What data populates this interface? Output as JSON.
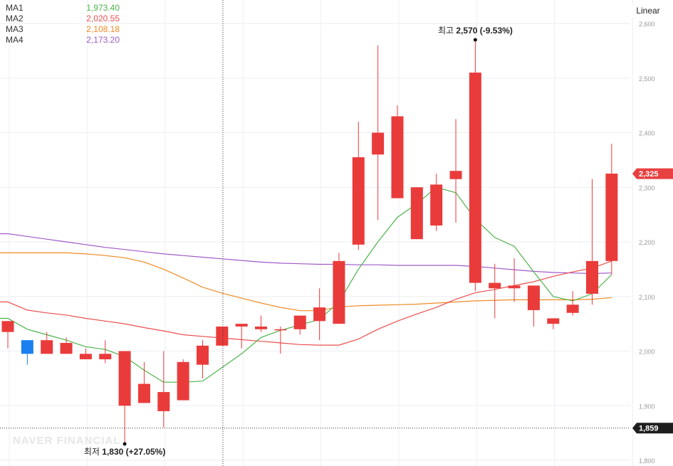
{
  "legend": [
    {
      "name": "MA1",
      "value": "1,973.40",
      "color": "#4cb34a"
    },
    {
      "name": "MA2",
      "value": "2,020.55",
      "color": "#ea4f4f"
    },
    {
      "name": "MA3",
      "value": "2,108.18",
      "color": "#f08a24"
    },
    {
      "name": "MA4",
      "value": "2,173.20",
      "color": "#a05ac9"
    }
  ],
  "scale_button": "Linear",
  "watermark": "NAVER FINANCIAL",
  "price_tags": {
    "current": "2,325",
    "crosshair": "1,859"
  },
  "annotations": {
    "high_prefix": "최고",
    "high_value": "2,570",
    "high_change": "(-9.53%)",
    "low_prefix": "최저",
    "low_value": "1,830",
    "low_change": "(+27.05%)"
  },
  "colors": {
    "up": "#ea3b3b",
    "down": "#1a7ff0",
    "current_tag": "#e84141",
    "crosshair_tag": "#1e1e1e",
    "grid": "#eceef1",
    "axis_text": "#9a9a9a"
  },
  "chart_data": {
    "type": "candlestick",
    "y_axis": {
      "ticks": [
        "2,600",
        "2,500",
        "2,400",
        "2,300",
        "2,200",
        "2,100",
        "2,000",
        "1,900",
        "1,800"
      ],
      "range": [
        1800,
        2600
      ]
    },
    "candles": [
      {
        "o": 2035,
        "h": 2055,
        "l": 2005,
        "c": 2055
      },
      {
        "o": 2020,
        "h": 2020,
        "l": 1975,
        "c": 1995
      },
      {
        "o": 1995,
        "h": 2035,
        "l": 1995,
        "c": 2020
      },
      {
        "o": 1995,
        "h": 2025,
        "l": 1995,
        "c": 2015
      },
      {
        "o": 1985,
        "h": 2005,
        "l": 1985,
        "c": 1995
      },
      {
        "o": 1985,
        "h": 2020,
        "l": 1978,
        "c": 1995
      },
      {
        "o": 1900,
        "h": 2000,
        "l": 1830,
        "c": 2000
      },
      {
        "o": 1905,
        "h": 1980,
        "l": 1905,
        "c": 1940
      },
      {
        "o": 1890,
        "h": 2000,
        "l": 1860,
        "c": 1925
      },
      {
        "o": 1910,
        "h": 1985,
        "l": 1910,
        "c": 1980
      },
      {
        "o": 1975,
        "h": 2020,
        "l": 1950,
        "c": 2010
      },
      {
        "o": 2010,
        "h": 2045,
        "l": 2010,
        "c": 2045
      },
      {
        "o": 2045,
        "h": 2050,
        "l": 2005,
        "c": 2050
      },
      {
        "o": 2040,
        "h": 2065,
        "l": 2035,
        "c": 2045
      },
      {
        "o": 2040,
        "h": 2045,
        "l": 1995,
        "c": 2040
      },
      {
        "o": 2040,
        "h": 2065,
        "l": 2030,
        "c": 2065
      },
      {
        "o": 2055,
        "h": 2115,
        "l": 2020,
        "c": 2080
      },
      {
        "o": 2050,
        "h": 2180,
        "l": 2050,
        "c": 2165
      },
      {
        "o": 2195,
        "h": 2420,
        "l": 2185,
        "c": 2355
      },
      {
        "o": 2360,
        "h": 2560,
        "l": 2240,
        "c": 2400
      },
      {
        "o": 2280,
        "h": 2450,
        "l": 2280,
        "c": 2430
      },
      {
        "o": 2205,
        "h": 2300,
        "l": 2205,
        "c": 2300
      },
      {
        "o": 2230,
        "h": 2325,
        "l": 2220,
        "c": 2305
      },
      {
        "o": 2315,
        "h": 2425,
        "l": 2235,
        "c": 2330
      },
      {
        "o": 2125,
        "h": 2570,
        "l": 2110,
        "c": 2510
      },
      {
        "o": 2115,
        "h": 2160,
        "l": 2060,
        "c": 2125
      },
      {
        "o": 2115,
        "h": 2170,
        "l": 2090,
        "c": 2120
      },
      {
        "o": 2075,
        "h": 2120,
        "l": 2045,
        "c": 2120
      },
      {
        "o": 2050,
        "h": 2060,
        "l": 2040,
        "c": 2060
      },
      {
        "o": 2070,
        "h": 2110,
        "l": 2065,
        "c": 2085
      },
      {
        "o": 2105,
        "h": 2315,
        "l": 2085,
        "c": 2165
      },
      {
        "o": 2165,
        "h": 2380,
        "l": 2140,
        "c": 2325
      }
    ],
    "moving_averages": {
      "MA1": [
        2060,
        2040,
        2030,
        2020,
        2008,
        2003,
        1990,
        1965,
        1943,
        1943,
        1945,
        1970,
        1995,
        2025,
        2038,
        2048,
        2058,
        2090,
        2150,
        2200,
        2245,
        2270,
        2300,
        2290,
        2242,
        2208,
        2192,
        2145,
        2100,
        2092,
        2105,
        2140
      ],
      "MA2": [
        2090,
        2075,
        2070,
        2066,
        2060,
        2055,
        2050,
        2043,
        2037,
        2030,
        2027,
        2024,
        2021,
        2018,
        2015,
        2012,
        2011,
        2011,
        2022,
        2040,
        2055,
        2068,
        2080,
        2095,
        2107,
        2113,
        2120,
        2127,
        2137,
        2145,
        2152,
        2165
      ],
      "MA3": [
        2180,
        2180,
        2180,
        2180,
        2178,
        2175,
        2171,
        2163,
        2150,
        2134,
        2117,
        2106,
        2097,
        2088,
        2080,
        2074,
        2074,
        2081,
        2083,
        2084,
        2085,
        2086,
        2088,
        2090,
        2092,
        2093,
        2094,
        2094,
        2094,
        2094,
        2095,
        2098
      ],
      "MA4": [
        2215,
        2210,
        2205,
        2200,
        2195,
        2190,
        2186,
        2182,
        2178,
        2175,
        2172,
        2169,
        2166,
        2163,
        2161,
        2160,
        2159,
        2159,
        2158,
        2158,
        2157,
        2157,
        2157,
        2157,
        2155,
        2152,
        2149,
        2146,
        2144,
        2143,
        2142,
        2143
      ]
    },
    "high": {
      "index": 24,
      "value": 2570
    },
    "low": {
      "index": 6,
      "value": 1830
    },
    "current_price": 2325,
    "crosshair_price": 1859
  }
}
